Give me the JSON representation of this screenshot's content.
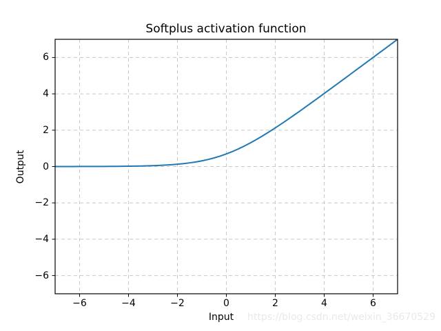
{
  "watermark": {
    "text": "https://blog.csdn.net/weixin_36670529",
    "color": "#e9e9e9"
  },
  "colors": {
    "background": "#ffffff",
    "line": "#1f77b4",
    "grid": "#c8c8c8",
    "spine": "#000000",
    "text": "#000000"
  },
  "chart_data": {
    "type": "line",
    "title": "Softplus activation function",
    "xlabel": "Input",
    "ylabel": "Output",
    "xlim": [
      -7,
      7
    ],
    "ylim": [
      -7,
      7
    ],
    "xticks": [
      -6,
      -4,
      -2,
      0,
      2,
      4,
      6
    ],
    "yticks": [
      -6,
      -4,
      -2,
      0,
      2,
      4,
      6
    ],
    "grid": true,
    "grid_style": "dashed",
    "legend": "none",
    "series": [
      {
        "name": "softplus",
        "color": "#1f77b4",
        "x": [
          -7,
          -6.75,
          -6.5,
          -6.25,
          -6,
          -5.75,
          -5.5,
          -5.25,
          -5,
          -4.75,
          -4.5,
          -4.25,
          -4,
          -3.75,
          -3.5,
          -3.25,
          -3,
          -2.75,
          -2.5,
          -2.25,
          -2,
          -1.75,
          -1.5,
          -1.25,
          -1,
          -0.75,
          -0.5,
          -0.25,
          0,
          0.25,
          0.5,
          0.75,
          1,
          1.25,
          1.5,
          1.75,
          2,
          2.25,
          2.5,
          2.75,
          3,
          3.25,
          3.5,
          3.75,
          4,
          4.25,
          4.5,
          4.75,
          5,
          5.25,
          5.5,
          5.75,
          6,
          6.25,
          6.5,
          6.75,
          7
        ],
        "y": [
          0.0009,
          0.0012,
          0.0015,
          0.0019,
          0.0025,
          0.0032,
          0.0041,
          0.0052,
          0.0067,
          0.0086,
          0.011,
          0.0142,
          0.0181,
          0.0232,
          0.0298,
          0.038,
          0.0486,
          0.062,
          0.0789,
          0.1002,
          0.1269,
          0.1602,
          0.2014,
          0.2519,
          0.3133,
          0.3869,
          0.4741,
          0.5759,
          0.6931,
          0.8259,
          0.9741,
          1.1369,
          1.3133,
          1.5019,
          1.7014,
          1.9102,
          2.1269,
          2.3502,
          2.5789,
          2.812,
          3.0486,
          3.288,
          3.5298,
          3.7732,
          4.0181,
          4.2642,
          4.511,
          4.7586,
          5.0067,
          5.2552,
          5.5041,
          5.7532,
          6.0025,
          6.2519,
          6.5015,
          6.7512,
          7.0009
        ]
      }
    ]
  }
}
